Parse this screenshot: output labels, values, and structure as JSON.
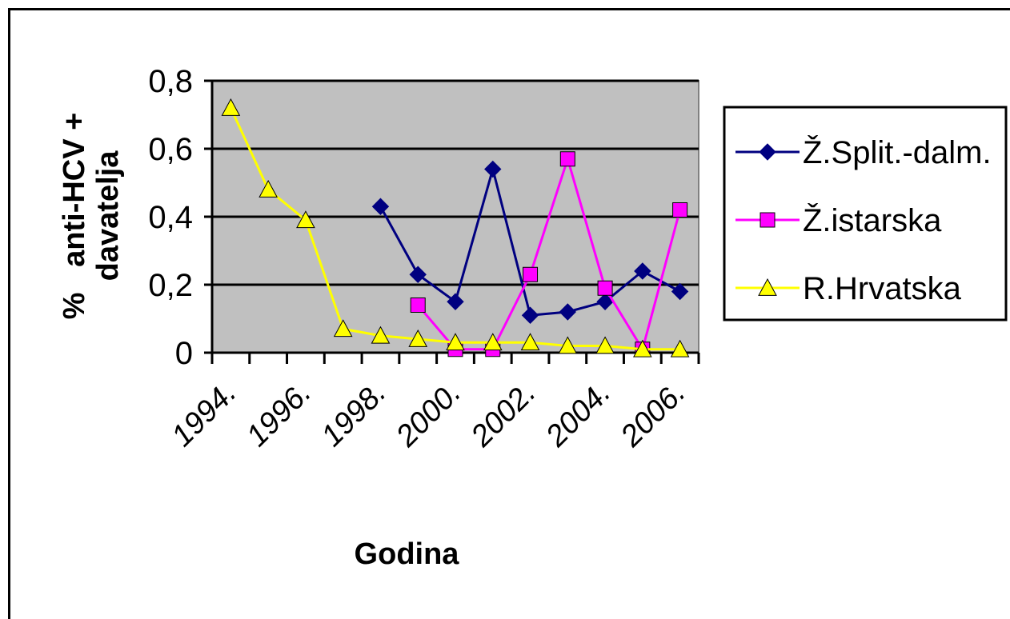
{
  "chart_data": {
    "type": "line",
    "title": "",
    "xlabel": "Godina",
    "ylabel": "% anti-HCV + davatelja",
    "ylabel_lines": [
      "%   anti-HCV +",
      "davatelja"
    ],
    "ylim": [
      0,
      0.8
    ],
    "yticks": [
      0,
      0.2,
      0.4,
      0.6,
      0.8
    ],
    "ytick_labels": [
      "0",
      "0,2",
      "0,4",
      "0,6",
      "0,8"
    ],
    "x": [
      1994,
      1995,
      1996,
      1997,
      1998,
      1999,
      2000,
      2001,
      2002,
      2003,
      2004,
      2005,
      2006
    ],
    "x_tick_labels": [
      "1994.",
      "1996.",
      "1998.",
      "2000.",
      "2002.",
      "2004.",
      "2006."
    ],
    "x_tick_label_years": [
      1994,
      1996,
      1998,
      2000,
      2002,
      2004,
      2006
    ],
    "grid": "horizontal",
    "legend_position": "right",
    "plot_background": "#c0c0c0",
    "series": [
      {
        "name": "Ž.Split.-dalm.",
        "color": "#000080",
        "marker": "diamond",
        "values": [
          null,
          null,
          null,
          null,
          0.43,
          0.23,
          0.15,
          0.54,
          0.11,
          0.12,
          0.15,
          0.24,
          0.18
        ]
      },
      {
        "name": "Ž.istarska",
        "color": "#ff00ff",
        "marker": "square",
        "values": [
          null,
          null,
          null,
          null,
          null,
          0.14,
          0.01,
          0.01,
          0.23,
          0.57,
          0.19,
          0.01,
          0.42
        ]
      },
      {
        "name": "R.Hrvatska",
        "color": "#ffff00",
        "marker": "triangle",
        "values": [
          0.72,
          0.48,
          0.39,
          0.07,
          0.05,
          0.04,
          0.03,
          0.03,
          0.03,
          0.02,
          0.02,
          0.01,
          0.01
        ]
      }
    ]
  }
}
